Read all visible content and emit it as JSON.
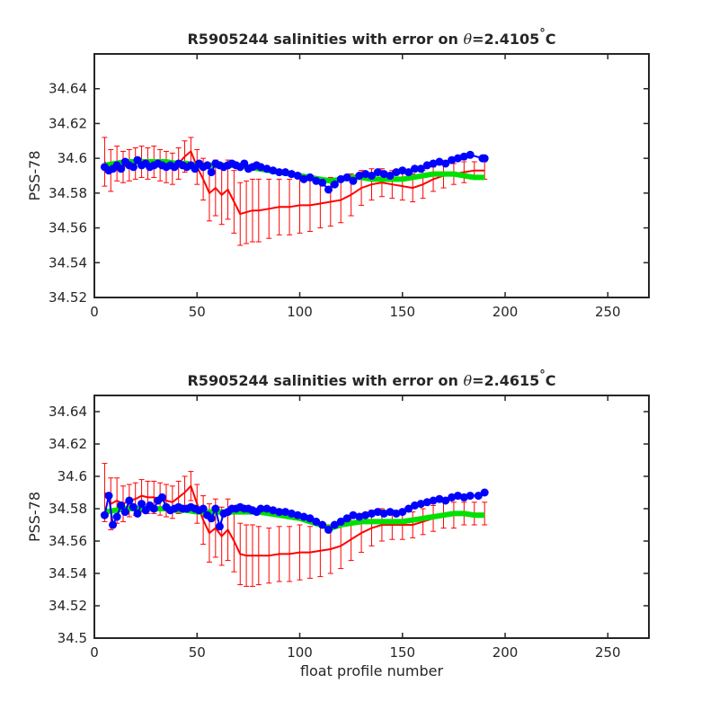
{
  "chart_data": [
    {
      "type": "line",
      "title_prefix": "R5905244 salinities with error on ",
      "title_theta": "θ",
      "title_value": "=2.4105",
      "title_degree": "°",
      "title_unit": "C",
      "ylabel": "PSS-78",
      "xlabel": "",
      "xlim": [
        0,
        270
      ],
      "ylim": [
        34.52,
        34.66
      ],
      "xticks": [
        0,
        50,
        100,
        150,
        200,
        250
      ],
      "xtick_labels": [
        "0",
        "50",
        "100",
        "150",
        "200",
        "250"
      ],
      "yticks": [
        34.52,
        34.54,
        34.56,
        34.58,
        34.6,
        34.62,
        34.64
      ],
      "ytick_labels": [
        "34.52",
        "34.54",
        "34.56",
        "34.58",
        "34.6",
        "34.62",
        "34.64"
      ],
      "series": [
        {
          "color": "#ff0000",
          "x": [
            5,
            8,
            11,
            14,
            17,
            20,
            23,
            26,
            29,
            32,
            35,
            38,
            41,
            44,
            47,
            50,
            53,
            56,
            59,
            62,
            65,
            68,
            71,
            74,
            77,
            80,
            85,
            90,
            95,
            100,
            105,
            110,
            115,
            120,
            125,
            130,
            135,
            140,
            145,
            150,
            155,
            160,
            165,
            170,
            175,
            180,
            185,
            190
          ],
          "values": [
            34.598,
            34.593,
            34.597,
            34.595,
            34.596,
            34.597,
            34.598,
            34.597,
            34.598,
            34.596,
            34.595,
            34.594,
            34.597,
            34.601,
            34.604,
            34.595,
            34.588,
            34.58,
            34.583,
            34.579,
            34.582,
            34.575,
            34.568,
            34.569,
            34.57,
            34.57,
            34.571,
            34.572,
            34.572,
            34.573,
            34.573,
            34.574,
            34.575,
            34.576,
            34.579,
            34.583,
            34.585,
            34.586,
            34.585,
            34.584,
            34.583,
            34.585,
            34.588,
            34.59,
            34.591,
            34.592,
            34.593,
            34.593
          ],
          "errors": [
            0.014,
            0.012,
            0.01,
            0.009,
            0.009,
            0.009,
            0.009,
            0.009,
            0.009,
            0.009,
            0.009,
            0.009,
            0.009,
            0.009,
            0.008,
            0.01,
            0.012,
            0.016,
            0.016,
            0.017,
            0.017,
            0.018,
            0.018,
            0.018,
            0.018,
            0.018,
            0.017,
            0.016,
            0.016,
            0.016,
            0.015,
            0.014,
            0.014,
            0.013,
            0.012,
            0.01,
            0.009,
            0.008,
            0.008,
            0.008,
            0.008,
            0.008,
            0.007,
            0.007,
            0.006,
            0.006,
            0.005,
            0.005
          ]
        },
        {
          "color": "#00e000",
          "x": [
            5,
            10,
            15,
            20,
            25,
            30,
            35,
            40,
            45,
            50,
            55,
            60,
            65,
            70,
            75,
            80,
            85,
            90,
            95,
            100,
            105,
            110,
            115,
            120,
            125,
            130,
            135,
            140,
            145,
            150,
            155,
            160,
            165,
            170,
            175,
            180,
            185,
            190
          ],
          "values": [
            34.596,
            34.597,
            34.598,
            34.598,
            34.598,
            34.598,
            34.598,
            34.597,
            34.597,
            34.596,
            34.596,
            34.596,
            34.596,
            34.596,
            34.595,
            34.594,
            34.593,
            34.592,
            34.591,
            34.59,
            34.589,
            34.588,
            34.587,
            34.588,
            34.589,
            34.589,
            34.588,
            34.588,
            34.588,
            34.588,
            34.589,
            34.59,
            34.591,
            34.591,
            34.591,
            34.59,
            34.589,
            34.589
          ]
        },
        {
          "color": "#0000ff",
          "x": [
            5,
            7,
            9,
            11,
            13,
            15,
            17,
            19,
            21,
            23,
            25,
            27,
            29,
            31,
            33,
            35,
            37,
            39,
            41,
            43,
            45,
            47,
            49,
            51,
            53,
            55,
            57,
            59,
            61,
            63,
            65,
            67,
            69,
            71,
            73,
            75,
            77,
            79,
            81,
            84,
            87,
            90,
            93,
            96,
            99,
            102,
            105,
            108,
            111,
            114,
            117,
            120,
            123,
            126,
            129,
            132,
            135,
            138,
            141,
            144,
            147,
            150,
            153,
            156,
            159,
            162,
            165,
            168,
            171,
            174,
            177,
            180,
            183,
            189,
            190
          ],
          "values": [
            34.595,
            34.593,
            34.594,
            34.596,
            34.594,
            34.598,
            34.596,
            34.595,
            34.599,
            34.596,
            34.597,
            34.595,
            34.596,
            34.597,
            34.596,
            34.595,
            34.596,
            34.595,
            34.597,
            34.596,
            34.595,
            34.596,
            34.594,
            34.597,
            34.595,
            34.596,
            34.592,
            34.597,
            34.596,
            34.595,
            34.596,
            34.597,
            34.596,
            34.595,
            34.597,
            34.594,
            34.595,
            34.596,
            34.595,
            34.594,
            34.593,
            34.592,
            34.592,
            34.591,
            34.59,
            34.588,
            34.589,
            34.587,
            34.586,
            34.582,
            34.585,
            34.588,
            34.589,
            34.587,
            34.59,
            34.591,
            34.59,
            34.592,
            34.591,
            34.59,
            34.592,
            34.593,
            34.592,
            34.594,
            34.594,
            34.596,
            34.597,
            34.598,
            34.597,
            34.599,
            34.6,
            34.601,
            34.602,
            34.6,
            34.6
          ]
        }
      ]
    },
    {
      "type": "line",
      "title_prefix": "R5905244 salinities with error on ",
      "title_theta": "θ",
      "title_value": "=2.4615",
      "title_degree": "°",
      "title_unit": "C",
      "ylabel": "PSS-78",
      "xlabel": "float profile number",
      "xlim": [
        0,
        270
      ],
      "ylim": [
        34.5,
        34.65
      ],
      "xticks": [
        0,
        50,
        100,
        150,
        200,
        250
      ],
      "xtick_labels": [
        "0",
        "50",
        "100",
        "150",
        "200",
        "250"
      ],
      "yticks": [
        34.5,
        34.52,
        34.54,
        34.56,
        34.58,
        34.6,
        34.62,
        34.64
      ],
      "ytick_labels": [
        "34.5",
        "34.52",
        "34.54",
        "34.56",
        "34.58",
        "34.6",
        "34.62",
        "34.64"
      ],
      "series": [
        {
          "color": "#ff0000",
          "x": [
            5,
            8,
            11,
            14,
            17,
            20,
            23,
            26,
            29,
            32,
            35,
            38,
            41,
            44,
            47,
            50,
            53,
            56,
            59,
            62,
            65,
            68,
            71,
            74,
            77,
            80,
            85,
            90,
            95,
            100,
            105,
            110,
            115,
            120,
            125,
            130,
            135,
            140,
            145,
            150,
            155,
            160,
            165,
            170,
            175,
            180,
            185,
            190
          ],
          "values": [
            34.59,
            34.583,
            34.585,
            34.583,
            34.585,
            34.586,
            34.588,
            34.587,
            34.587,
            34.586,
            34.585,
            34.584,
            34.587,
            34.59,
            34.594,
            34.583,
            34.573,
            34.565,
            34.568,
            34.563,
            34.567,
            34.56,
            34.552,
            34.551,
            34.551,
            34.551,
            34.551,
            34.552,
            34.552,
            34.553,
            34.553,
            34.554,
            34.555,
            34.557,
            34.561,
            34.565,
            34.568,
            34.57,
            34.57,
            34.57,
            34.57,
            34.572,
            34.574,
            34.576,
            34.576,
            34.577,
            34.577,
            34.577
          ],
          "errors": [
            0.018,
            0.016,
            0.014,
            0.011,
            0.01,
            0.01,
            0.01,
            0.01,
            0.01,
            0.01,
            0.01,
            0.01,
            0.01,
            0.01,
            0.009,
            0.012,
            0.015,
            0.018,
            0.018,
            0.018,
            0.019,
            0.019,
            0.019,
            0.019,
            0.019,
            0.018,
            0.017,
            0.017,
            0.017,
            0.017,
            0.016,
            0.016,
            0.015,
            0.014,
            0.013,
            0.012,
            0.011,
            0.01,
            0.009,
            0.009,
            0.008,
            0.008,
            0.008,
            0.008,
            0.008,
            0.007,
            0.007,
            0.007
          ]
        },
        {
          "color": "#00e000",
          "x": [
            5,
            10,
            15,
            20,
            25,
            30,
            35,
            40,
            45,
            50,
            55,
            60,
            65,
            70,
            75,
            80,
            85,
            90,
            95,
            100,
            105,
            110,
            115,
            120,
            125,
            130,
            135,
            140,
            145,
            150,
            155,
            160,
            165,
            170,
            175,
            180,
            185,
            190
          ],
          "values": [
            34.578,
            34.579,
            34.58,
            34.58,
            34.58,
            34.58,
            34.58,
            34.579,
            34.579,
            34.578,
            34.578,
            34.578,
            34.578,
            34.578,
            34.578,
            34.578,
            34.577,
            34.576,
            34.575,
            34.574,
            34.572,
            34.57,
            34.568,
            34.57,
            34.571,
            34.572,
            34.572,
            34.572,
            34.572,
            34.572,
            34.573,
            34.574,
            34.575,
            34.576,
            34.577,
            34.577,
            34.576,
            34.576
          ]
        },
        {
          "color": "#0000ff",
          "x": [
            5,
            7,
            9,
            11,
            13,
            15,
            17,
            19,
            21,
            23,
            25,
            27,
            29,
            31,
            33,
            35,
            37,
            39,
            41,
            43,
            45,
            47,
            49,
            51,
            53,
            55,
            57,
            59,
            61,
            63,
            65,
            67,
            69,
            71,
            73,
            75,
            77,
            79,
            81,
            84,
            87,
            90,
            93,
            96,
            99,
            102,
            105,
            108,
            111,
            114,
            117,
            120,
            123,
            126,
            129,
            132,
            135,
            138,
            141,
            144,
            147,
            150,
            153,
            156,
            159,
            162,
            165,
            168,
            171,
            174,
            177,
            180,
            183,
            187,
            190
          ],
          "values": [
            34.576,
            34.588,
            34.57,
            34.575,
            34.582,
            34.578,
            34.585,
            34.581,
            34.577,
            34.583,
            34.579,
            34.582,
            34.58,
            34.585,
            34.587,
            34.581,
            34.579,
            34.58,
            34.581,
            34.58,
            34.58,
            34.581,
            34.58,
            34.579,
            34.58,
            34.576,
            34.574,
            34.58,
            34.569,
            34.577,
            34.578,
            34.58,
            34.58,
            34.581,
            34.58,
            34.58,
            34.579,
            34.578,
            34.58,
            34.58,
            34.579,
            34.578,
            34.578,
            34.577,
            34.576,
            34.575,
            34.574,
            34.572,
            34.57,
            34.567,
            34.57,
            34.572,
            34.574,
            34.576,
            34.575,
            34.576,
            34.577,
            34.578,
            34.577,
            34.578,
            34.577,
            34.578,
            34.58,
            34.582,
            34.583,
            34.584,
            34.585,
            34.586,
            34.585,
            34.587,
            34.588,
            34.587,
            34.588,
            34.588,
            34.59
          ]
        }
      ]
    }
  ]
}
